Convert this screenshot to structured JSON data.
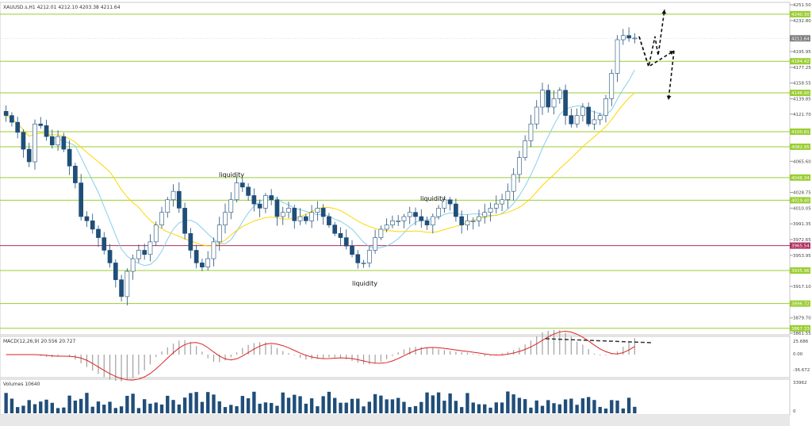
{
  "header": {
    "symbol_line": "XAUUSD.s,H1  4212.01 4212.10 4203.38 4211.64",
    "macd_label": "MACD(12,26,9) 20.556 20.727",
    "volume_label": "Volumes 10640"
  },
  "price_axis": {
    "ticks": [
      "4251.50",
      "4232.80",
      "4195.95",
      "4177.25",
      "4158.55",
      "4139.85",
      "4121.70",
      "4065.60",
      "4028.75",
      "4010.05",
      "3991.35",
      "3972.65",
      "3953.95",
      "3917.10",
      "3879.70",
      "3861.55"
    ]
  },
  "levels": [
    {
      "label": "4240.30",
      "color": "#9acd32"
    },
    {
      "label": "4184.42",
      "color": "#9acd32"
    },
    {
      "label": "4146.90",
      "color": "#9acd32"
    },
    {
      "label": "4100.81",
      "color": "#9acd32"
    },
    {
      "label": "4082.95",
      "color": "#9acd32"
    },
    {
      "label": "4046.34",
      "color": "#9acd32"
    },
    {
      "label": "4019.40",
      "color": "#9acd32"
    },
    {
      "label": "3965.54",
      "color": "#b03060"
    },
    {
      "label": "3935.96",
      "color": "#9acd32"
    },
    {
      "label": "3896.72",
      "color": "#9acd32"
    },
    {
      "label": "3867.33",
      "color": "#9acd32"
    }
  ],
  "current_price_label": "4211.64",
  "annotations": [
    {
      "text": "liquidity"
    },
    {
      "text": "liquidity"
    },
    {
      "text": "liquidity"
    }
  ],
  "macd_axis": [
    "25.686",
    "0.00",
    "-36.672"
  ],
  "volume_axis": [
    "33962",
    "0"
  ],
  "chart_data": {
    "type": "candlestick",
    "symbol": "XAUUSD.s",
    "timeframe": "H1",
    "ylim": [
      3861.55,
      4251.5
    ],
    "ohlc_last": {
      "open": 4212.01,
      "high": 4212.1,
      "low": 4203.38,
      "close": 4211.64
    },
    "close_path": [
      4120,
      4112,
      4100,
      4080,
      4065,
      4110,
      4108,
      4095,
      4085,
      4095,
      4080,
      4060,
      4040,
      4000,
      3995,
      3985,
      3975,
      3960,
      3945,
      3925,
      3905,
      3935,
      3950,
      3960,
      3955,
      3970,
      3990,
      4005,
      4020,
      4030,
      4010,
      3980,
      3960,
      3945,
      3940,
      3950,
      3970,
      3990,
      4005,
      4020,
      4040,
      4035,
      4025,
      4015,
      4010,
      4025,
      4020,
      4000,
      4005,
      4010,
      3995,
      4000,
      3995,
      4005,
      4010,
      4000,
      3990,
      3980,
      3975,
      3965,
      3955,
      3945,
      3945,
      3960,
      3975,
      3985,
      3990,
      3995,
      3995,
      4000,
      4005,
      4000,
      3995,
      3990,
      4000,
      4010,
      4020,
      4015,
      4000,
      3990,
      3995,
      3995,
      4000,
      4005,
      4010,
      4015,
      4020,
      4030,
      4050,
      4070,
      4090,
      4110,
      4130,
      4150,
      4130,
      4140,
      4150,
      4120,
      4110,
      4120,
      4130,
      4110,
      4115,
      4120,
      4140,
      4170,
      4210,
      4215,
      4212,
      4212
    ],
    "moving_averages": [
      {
        "name": "MA fast",
        "color": "#87ceeb"
      },
      {
        "name": "MA slow",
        "color": "#ffd700"
      }
    ],
    "macd": {
      "value": 20.556,
      "signal": 20.727
    },
    "volume": 10640
  }
}
